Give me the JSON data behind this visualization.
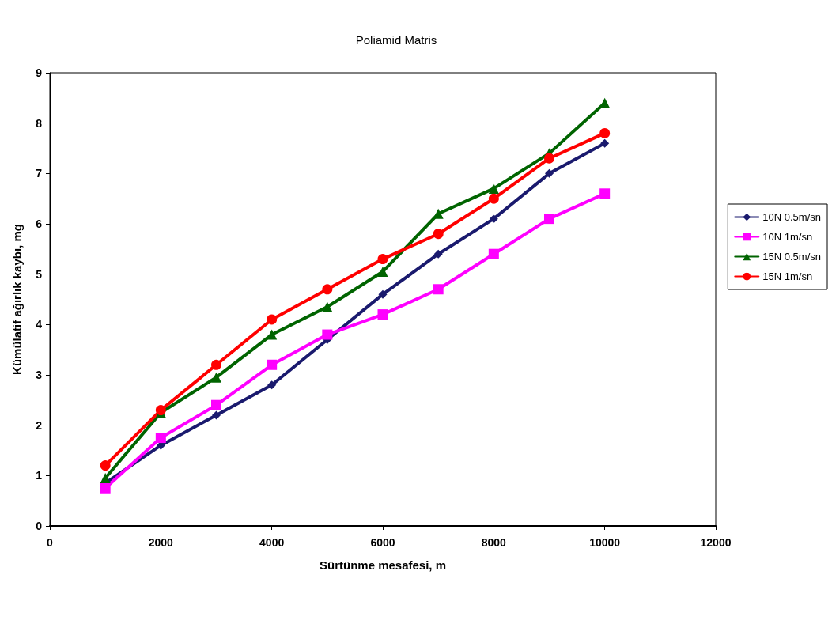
{
  "chart_data": {
    "type": "line",
    "title": "Poliamid Matris",
    "xlabel": "Sürtünme mesafesi, m",
    "ylabel": "Kümülatif ağırlık kaybı, mg",
    "x": [
      1000,
      2000,
      3000,
      4000,
      5000,
      6000,
      7000,
      8000,
      9000,
      10000
    ],
    "xlim": [
      0,
      12000
    ],
    "xticks": [
      0,
      2000,
      4000,
      6000,
      8000,
      10000,
      12000
    ],
    "ylim": [
      0,
      9
    ],
    "yticks": [
      0,
      1,
      2,
      3,
      4,
      5,
      6,
      7,
      8,
      9
    ],
    "grid": false,
    "legend": "right",
    "line_style": "solid",
    "series": [
      {
        "name": "10N 0.5m/sn",
        "color": "#1a1a6e",
        "marker": "diamond",
        "values": [
          0.85,
          1.6,
          2.2,
          2.8,
          3.7,
          4.6,
          5.4,
          6.1,
          7.0,
          7.6
        ]
      },
      {
        "name": "10N 1m/sn",
        "color": "#ff00ff",
        "marker": "square",
        "values": [
          0.75,
          1.75,
          2.4,
          3.2,
          3.8,
          4.2,
          4.7,
          5.4,
          6.1,
          6.6
        ]
      },
      {
        "name": "15N 0.5m/sn",
        "color": "#006400",
        "marker": "triangle",
        "values": [
          0.95,
          2.25,
          2.95,
          3.8,
          4.35,
          5.05,
          6.2,
          6.7,
          7.4,
          8.4
        ]
      },
      {
        "name": "15N 1m/sn",
        "color": "#ff0000",
        "marker": "circle",
        "values": [
          1.2,
          2.3,
          3.2,
          4.1,
          4.7,
          5.3,
          5.8,
          6.5,
          7.3,
          7.8
        ]
      }
    ]
  }
}
